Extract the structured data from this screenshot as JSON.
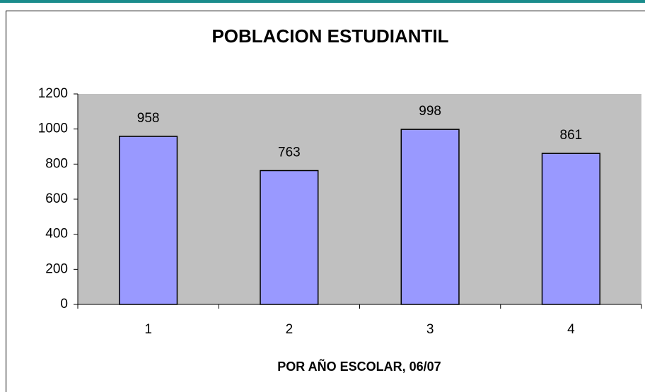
{
  "chart_data": {
    "type": "bar",
    "title": "POBLACION ESTUDIANTIL",
    "x_label": "POR AÑO ESCOLAR, 06/07",
    "categories": [
      "1",
      "2",
      "3",
      "4"
    ],
    "values": [
      958,
      763,
      998,
      861
    ],
    "color": "#9999ff",
    "ylim": [
      0,
      1200
    ],
    "yticks": [
      0,
      200,
      400,
      600,
      800,
      1000,
      1200
    ],
    "grid": false
  }
}
